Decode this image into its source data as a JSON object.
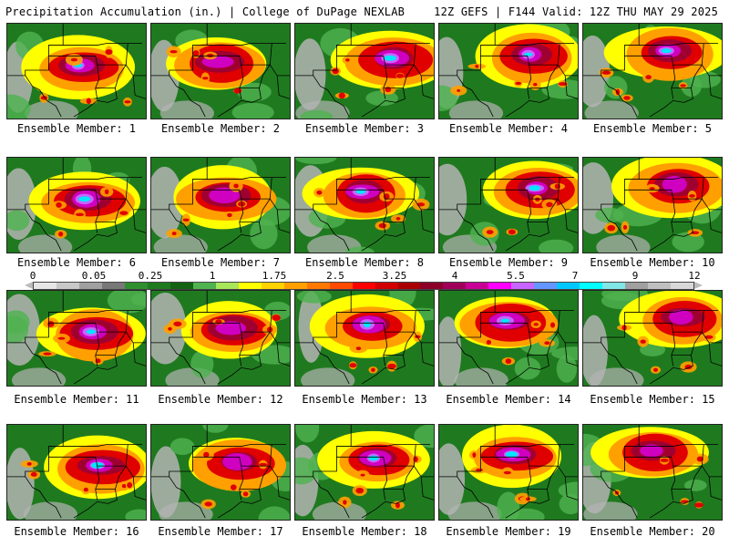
{
  "header": {
    "left": "Precipitation Accumulation (in.) | College of DuPage NEXLAB",
    "right": "12Z GEFS | F144 Valid: 12Z THU MAY 29 2025"
  },
  "panels": [
    {
      "label": "Ensemble Member: 1"
    },
    {
      "label": "Ensemble Member: 2"
    },
    {
      "label": "Ensemble Member: 3"
    },
    {
      "label": "Ensemble Member: 4"
    },
    {
      "label": "Ensemble Member: 5"
    },
    {
      "label": "Ensemble Member: 6"
    },
    {
      "label": "Ensemble Member: 7"
    },
    {
      "label": "Ensemble Member: 8"
    },
    {
      "label": "Ensemble Member: 9"
    },
    {
      "label": "Ensemble Member: 10"
    },
    {
      "label": "Ensemble Member: 11"
    },
    {
      "label": "Ensemble Member: 12"
    },
    {
      "label": "Ensemble Member: 13"
    },
    {
      "label": "Ensemble Member: 14"
    },
    {
      "label": "Ensemble Member: 15"
    },
    {
      "label": "Ensemble Member: 16"
    },
    {
      "label": "Ensemble Member: 17"
    },
    {
      "label": "Ensemble Member: 18"
    },
    {
      "label": "Ensemble Member: 19"
    },
    {
      "label": "Ensemble Member: 20"
    }
  ],
  "colorbar": {
    "tick_labels": [
      "0",
      "0.05",
      "0.25",
      "1",
      "1.75",
      "2.5",
      "3.25",
      "4",
      "5.5",
      "7",
      "9",
      "12"
    ],
    "colors": [
      "#e6e6e6",
      "#c8c8c8",
      "#a0a0a0",
      "#787878",
      "#2f8f2f",
      "#1f7a1f",
      "#136313",
      "#4fb34f",
      "#a8e65a",
      "#ffff00",
      "#ffd200",
      "#ffa000",
      "#ff7800",
      "#ff4a00",
      "#ff0000",
      "#d20000",
      "#aa0000",
      "#8c0028",
      "#a0005a",
      "#c80096",
      "#ff00ff",
      "#c864ff",
      "#6496ff",
      "#00c8ff",
      "#00ffff",
      "#80e6e6",
      "#a0a0a0",
      "#c0c0c0",
      "#d8d8d8"
    ]
  },
  "map_colors": {
    "base": "#1f7a1f",
    "dry": "#b4b4b4",
    "light": "#4fb34f",
    "yellow": "#ffff00",
    "orange": "#ffa000",
    "red": "#e00000",
    "darkred": "#a00030",
    "magenta": "#d000c0",
    "violet": "#c864ff",
    "cyan": "#00e6ff",
    "border": "#000000"
  }
}
